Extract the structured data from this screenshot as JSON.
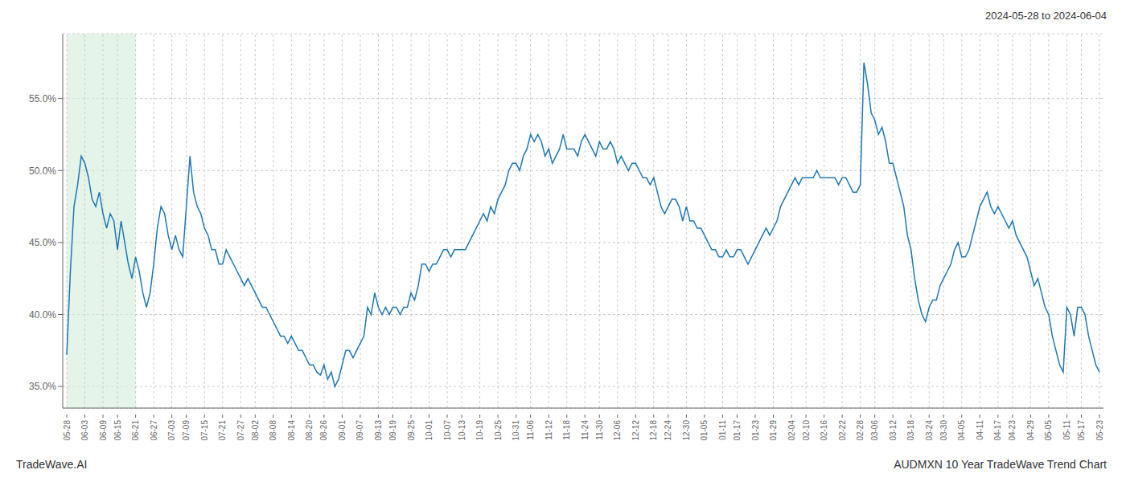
{
  "chart_data": {
    "type": "line",
    "annotations": [
      "2024-05-28 to 2024-06-04",
      "TradeWave.AI",
      "AUDMXN 10 Year TradeWave Trend Chart"
    ],
    "color": "#1f77b4",
    "grid": true,
    "ylim": [
      33.5,
      59.5
    ],
    "yticks": [
      {
        "value": 35.0,
        "label": "35.0%"
      },
      {
        "value": 40.0,
        "label": "40.0%"
      },
      {
        "value": 45.0,
        "label": "45.0%"
      },
      {
        "value": 50.0,
        "label": "50.0%"
      },
      {
        "value": 55.0,
        "label": "55.0%"
      }
    ],
    "highlight": {
      "start": "05-28",
      "end": "06-21",
      "color": "#d4edda"
    },
    "categories": [
      "05-28",
      null,
      null,
      null,
      null,
      "06-03",
      null,
      null,
      null,
      null,
      "06-09",
      null,
      null,
      null,
      "06-15",
      null,
      null,
      null,
      null,
      "06-21",
      null,
      null,
      null,
      null,
      "06-27",
      null,
      null,
      null,
      null,
      "07-03",
      null,
      null,
      null,
      "07-09",
      null,
      null,
      null,
      null,
      "07-15",
      null,
      null,
      null,
      null,
      "07-21",
      null,
      null,
      null,
      null,
      "07-27",
      null,
      null,
      null,
      "08-02",
      null,
      null,
      null,
      null,
      "08-08",
      null,
      null,
      null,
      null,
      "08-14",
      null,
      null,
      null,
      null,
      "08-20",
      null,
      null,
      null,
      "08-26",
      null,
      null,
      null,
      null,
      "09-01",
      null,
      null,
      null,
      null,
      "09-07",
      null,
      null,
      null,
      null,
      "09-13",
      null,
      null,
      null,
      "09-19",
      null,
      null,
      null,
      null,
      "09-25",
      null,
      null,
      null,
      null,
      "10-01",
      null,
      null,
      null,
      null,
      "10-07",
      null,
      null,
      null,
      "10-13",
      null,
      null,
      null,
      null,
      "10-19",
      null,
      null,
      null,
      null,
      "10-25",
      null,
      null,
      null,
      null,
      "10-31",
      null,
      null,
      null,
      "11-06",
      null,
      null,
      null,
      null,
      "11-12",
      null,
      null,
      null,
      null,
      "11-18",
      null,
      null,
      null,
      null,
      "11-24",
      null,
      null,
      null,
      "11-30",
      null,
      null,
      null,
      null,
      "12-06",
      null,
      null,
      null,
      null,
      "12-12",
      null,
      null,
      null,
      null,
      "12-18",
      null,
      null,
      null,
      "12-24",
      null,
      null,
      null,
      null,
      "12-30",
      null,
      null,
      null,
      null,
      "01-05",
      null,
      null,
      null,
      null,
      "01-11",
      null,
      null,
      null,
      "01-17",
      null,
      null,
      null,
      null,
      "01-23",
      null,
      null,
      null,
      null,
      "01-29",
      null,
      null,
      null,
      null,
      "02-04",
      null,
      null,
      null,
      "02-10",
      null,
      null,
      null,
      null,
      "02-16",
      null,
      null,
      null,
      null,
      "02-22",
      null,
      null,
      null,
      null,
      "02-28",
      null,
      null,
      null,
      "03-06",
      null,
      null,
      null,
      null,
      "03-12",
      null,
      null,
      null,
      null,
      "03-18",
      null,
      null,
      null,
      null,
      "03-24",
      null,
      null,
      null,
      "03-30",
      null,
      null,
      null,
      null,
      "04-05",
      null,
      null,
      null,
      null,
      "04-11",
      null,
      null,
      null,
      null,
      "04-17",
      null,
      null,
      null,
      "04-23",
      null,
      null,
      null,
      null,
      "04-29",
      null,
      null,
      null,
      null,
      "05-05",
      null,
      null,
      null,
      null,
      "05-11",
      null,
      null,
      null,
      "05-17",
      null,
      null,
      null,
      null,
      "05-23"
    ],
    "values": [
      37.2,
      43.0,
      47.5,
      49.0,
      51.0,
      50.5,
      49.5,
      48.0,
      47.5,
      48.5,
      47.0,
      46.0,
      47.0,
      46.5,
      44.5,
      46.5,
      45.0,
      43.5,
      42.5,
      44.0,
      43.0,
      41.5,
      40.5,
      41.5,
      43.5,
      46.0,
      47.5,
      47.0,
      45.5,
      44.5,
      45.5,
      44.5,
      44.0,
      47.5,
      51.0,
      48.5,
      47.5,
      47.0,
      46.0,
      45.5,
      44.5,
      44.5,
      43.5,
      43.5,
      44.5,
      44.0,
      43.5,
      43.0,
      42.5,
      42.0,
      42.5,
      42.0,
      41.5,
      41.0,
      40.5,
      40.5,
      40.0,
      39.5,
      39.0,
      38.5,
      38.5,
      38.0,
      38.5,
      38.0,
      37.5,
      37.5,
      37.0,
      36.5,
      36.5,
      36.0,
      35.8,
      36.5,
      35.5,
      36.0,
      35.0,
      35.5,
      36.5,
      37.5,
      37.5,
      37.0,
      37.5,
      38.0,
      38.5,
      40.5,
      40.0,
      41.5,
      40.5,
      40.0,
      40.5,
      40.0,
      40.5,
      40.5,
      40.0,
      40.5,
      40.5,
      41.5,
      41.0,
      42.0,
      43.5,
      43.5,
      43.0,
      43.5,
      43.5,
      44.0,
      44.5,
      44.5,
      44.0,
      44.5,
      44.5,
      44.5,
      44.5,
      45.0,
      45.5,
      46.0,
      46.5,
      47.0,
      46.5,
      47.5,
      47.0,
      48.0,
      48.5,
      49.0,
      50.0,
      50.5,
      50.5,
      50.0,
      51.0,
      51.5,
      52.5,
      52.0,
      52.5,
      52.0,
      51.0,
      51.5,
      50.5,
      51.0,
      51.5,
      52.5,
      51.5,
      51.5,
      51.5,
      51.0,
      52.0,
      52.5,
      52.0,
      51.5,
      51.0,
      52.0,
      51.5,
      51.5,
      52.0,
      51.5,
      50.5,
      51.0,
      50.5,
      50.0,
      50.5,
      50.5,
      50.0,
      49.5,
      49.5,
      49.0,
      49.5,
      48.5,
      47.5,
      47.0,
      47.5,
      48.0,
      48.0,
      47.5,
      46.5,
      47.5,
      46.5,
      46.5,
      46.0,
      46.0,
      45.5,
      45.0,
      44.5,
      44.5,
      44.0,
      44.0,
      44.5,
      44.0,
      44.0,
      44.5,
      44.5,
      44.0,
      43.5,
      44.0,
      44.5,
      45.0,
      45.5,
      46.0,
      45.5,
      46.0,
      46.5,
      47.5,
      48.0,
      48.5,
      49.0,
      49.5,
      49.0,
      49.5,
      49.5,
      49.5,
      49.5,
      50.0,
      49.5,
      49.5,
      49.5,
      49.5,
      49.5,
      49.0,
      49.5,
      49.5,
      49.0,
      48.5,
      48.5,
      49.0,
      57.5,
      56.0,
      54.0,
      53.5,
      52.5,
      53.0,
      52.0,
      50.5,
      50.5,
      49.5,
      48.5,
      47.5,
      45.5,
      44.5,
      42.5,
      41.0,
      40.0,
      39.5,
      40.5,
      41.0,
      41.0,
      42.0,
      42.5,
      43.0,
      43.5,
      44.5,
      45.0,
      44.0,
      44.0,
      44.5,
      45.5,
      46.5,
      47.5,
      48.0,
      48.5,
      47.5,
      47.0,
      47.5,
      47.0,
      46.5,
      46.0,
      46.5,
      45.5,
      45.0,
      44.5,
      44.0,
      43.0,
      42.0,
      42.5,
      41.5,
      40.5,
      40.0,
      38.5,
      37.5,
      36.5,
      36.0,
      40.5,
      40.0,
      38.5,
      40.5,
      40.5,
      40.0,
      38.5,
      37.5,
      36.5,
      36.0
    ]
  }
}
